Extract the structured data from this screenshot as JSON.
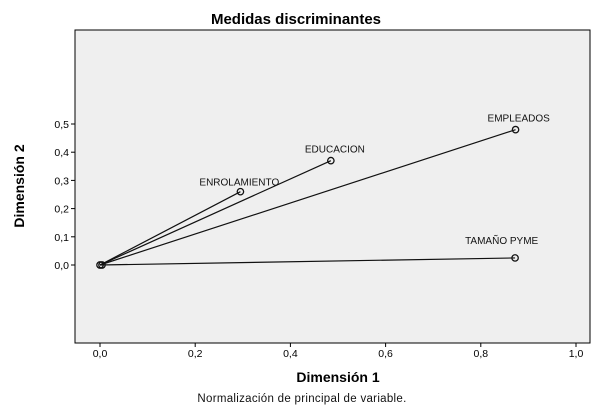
{
  "chart_data": {
    "type": "scatter",
    "title": "Medidas discriminantes",
    "xlabel": "Dimensión 1",
    "ylabel": "Dimensión 2",
    "footnote": "Normalización de principal de variable.",
    "xlim": [
      0.0,
      1.0
    ],
    "ylim": [
      0.0,
      0.5
    ],
    "xticks": [
      "0,0",
      "0,2",
      "0,4",
      "0,6",
      "0,8",
      "1,0"
    ],
    "yticks": [
      "0,0",
      "0,1",
      "0,2",
      "0,3",
      "0,4",
      "0,5"
    ],
    "origin": [
      0.0,
      0.0
    ],
    "vectors_from_origin": true,
    "grid": false,
    "background": "#efefef",
    "points": [
      {
        "label": "ENROLAMIENTO",
        "x": 0.295,
        "y": 0.26
      },
      {
        "label": "EDUCACION",
        "x": 0.485,
        "y": 0.37
      },
      {
        "label": "EMPLEADOS",
        "x": 0.873,
        "y": 0.48
      },
      {
        "label": "TAMAÑO  PYME",
        "x": 0.872,
        "y": 0.025
      }
    ]
  }
}
